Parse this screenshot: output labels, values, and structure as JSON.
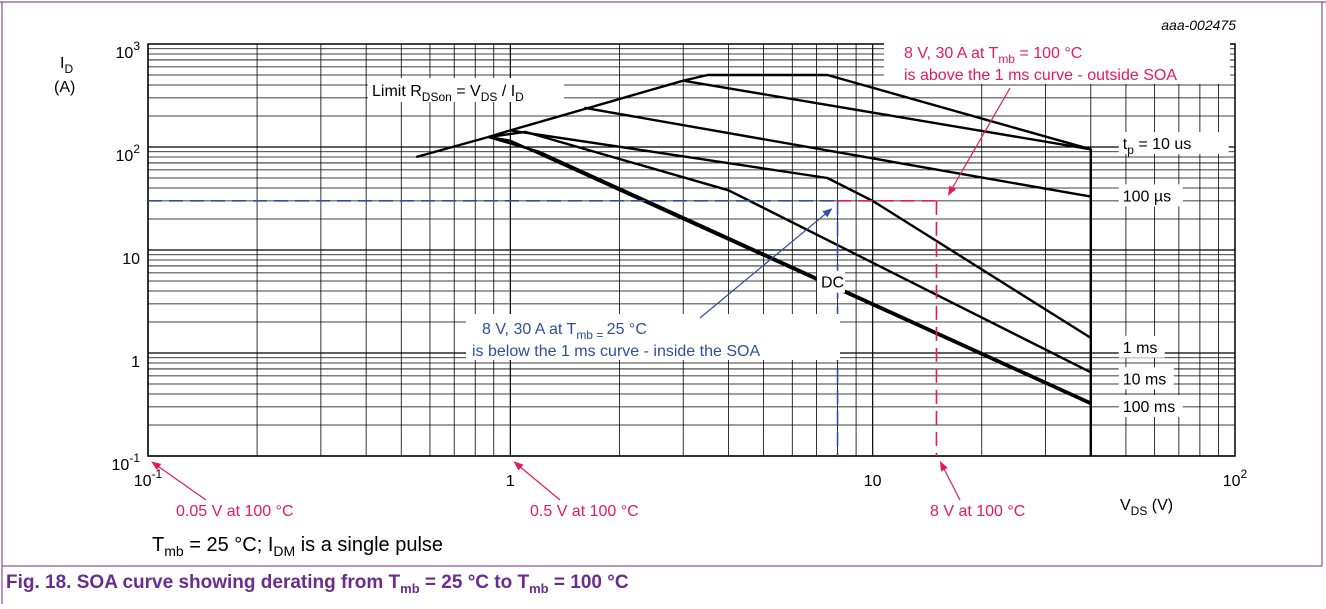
{
  "figure_id": "aaa-002475",
  "note": {
    "p1": "T",
    "s1": "mb",
    "p2": " = 25 °C; I",
    "s2": "DM",
    "p3": " is a single pulse"
  },
  "caption": {
    "p1": "Fig. 18.  SOA curve showing derating from T",
    "s1": "mb",
    "p2": " = 25 °C to T",
    "s2": "mb",
    "p3": " = 100 °C"
  },
  "colors": {
    "purple": "#6b2c8f",
    "red": "#e6195c",
    "blue": "#2e4f9e",
    "black": "#000000"
  },
  "chart_data": {
    "type": "line",
    "x_scale": "log",
    "y_scale": "log",
    "xlim": [
      0.1,
      100
    ],
    "ylim": [
      0.1,
      1000
    ],
    "grid": true,
    "xlabel": {
      "main": "V",
      "sub": "DS",
      "rest": " (V)"
    },
    "ylabel": {
      "main": "I",
      "sub": "D",
      "unit": "(A)"
    },
    "x_ticks": [
      {
        "value": 0.1,
        "base": "10",
        "exp": "-1"
      },
      {
        "value": 1,
        "base": "1",
        "exp": ""
      },
      {
        "value": 10,
        "base": "10",
        "exp": ""
      },
      {
        "value": 100,
        "base": "10",
        "exp": "2"
      }
    ],
    "y_ticks": [
      {
        "value": 0.1,
        "base": "10",
        "exp": "-1"
      },
      {
        "value": 1,
        "base": "1",
        "exp": ""
      },
      {
        "value": 10,
        "base": "10",
        "exp": ""
      },
      {
        "value": 100,
        "base": "10",
        "exp": "2"
      },
      {
        "value": 1000,
        "base": "10",
        "exp": "3"
      }
    ],
    "series": [
      {
        "name": "limit",
        "points": [
          [
            0.55,
            80
          ],
          [
            0.87,
            125
          ],
          [
            1.0,
            145
          ],
          [
            3.0,
            440
          ],
          [
            3.5,
            500
          ],
          [
            7.5,
            500
          ],
          [
            40,
            95
          ],
          [
            40,
            0.1
          ]
        ]
      },
      {
        "name": "10 us",
        "points": [
          [
            3.0,
            440
          ],
          [
            40,
            95
          ]
        ]
      },
      {
        "name": "100 us",
        "points": [
          [
            1.6,
            240
          ],
          [
            40,
            33
          ]
        ]
      },
      {
        "name": "1 ms",
        "points": [
          [
            1.0,
            145
          ],
          [
            7.5,
            50
          ],
          [
            10,
            30
          ],
          [
            40,
            1.4
          ]
        ]
      },
      {
        "name": "10 ms",
        "points": [
          [
            0.87,
            125
          ],
          [
            1.1,
            140
          ],
          [
            4.0,
            38
          ],
          [
            40,
            0.65
          ]
        ]
      },
      {
        "name": "100 ms",
        "points": [
          [
            0.87,
            125
          ],
          [
            1.2,
            90
          ],
          [
            40,
            0.33
          ]
        ]
      },
      {
        "name": "DC",
        "points": [
          [
            0.87,
            125
          ],
          [
            1.0,
            115
          ],
          [
            40,
            0.32
          ]
        ]
      }
    ],
    "curve_labels": [
      {
        "text_main": "t",
        "text_sub": "p",
        "text_rest": " = 10 us",
        "at": [
          49,
          100
        ]
      },
      {
        "text_main": "100 µs",
        "text_sub": "",
        "text_rest": "",
        "at": [
          49,
          31
        ]
      },
      {
        "text_main": "1 ms",
        "text_sub": "",
        "text_rest": "",
        "at": [
          49,
          1.05
        ]
      },
      {
        "text_main": "10 ms",
        "text_sub": "",
        "text_rest": "",
        "at": [
          49,
          0.52
        ]
      },
      {
        "text_main": "100 ms",
        "text_sub": "",
        "text_rest": "",
        "at": [
          49,
          0.28
        ]
      },
      {
        "text_main": "DC",
        "text_sub": "",
        "text_rest": "",
        "at": [
          7.2,
          4.5
        ]
      }
    ],
    "limit_label": {
      "p1": "Limit R",
      "s1": "DSon",
      "p2": " = V",
      "s2": "DS",
      "p3": " / I",
      "s3": "D"
    },
    "reference_25C": {
      "x": 8,
      "y": 30
    },
    "reference_100C": {
      "x": 15,
      "y": 30
    },
    "annotations": {
      "red_upper": {
        "l1": "8 V, 30 A at T",
        "l1s": "mb",
        "l1r": " = 100 °C",
        "l2": "is above the 1 ms curve - outside SOA"
      },
      "blue": {
        "l1": "8 V, 30 A at T",
        "l1s": "mb = ",
        "l1r": "25 °C",
        "l2": "is below the 1 ms curve - inside the SOA"
      },
      "red_bottom": [
        "0.05 V at 100 °C",
        "0.5 V at 100 °C",
        "8 V at 100 °C"
      ]
    }
  }
}
